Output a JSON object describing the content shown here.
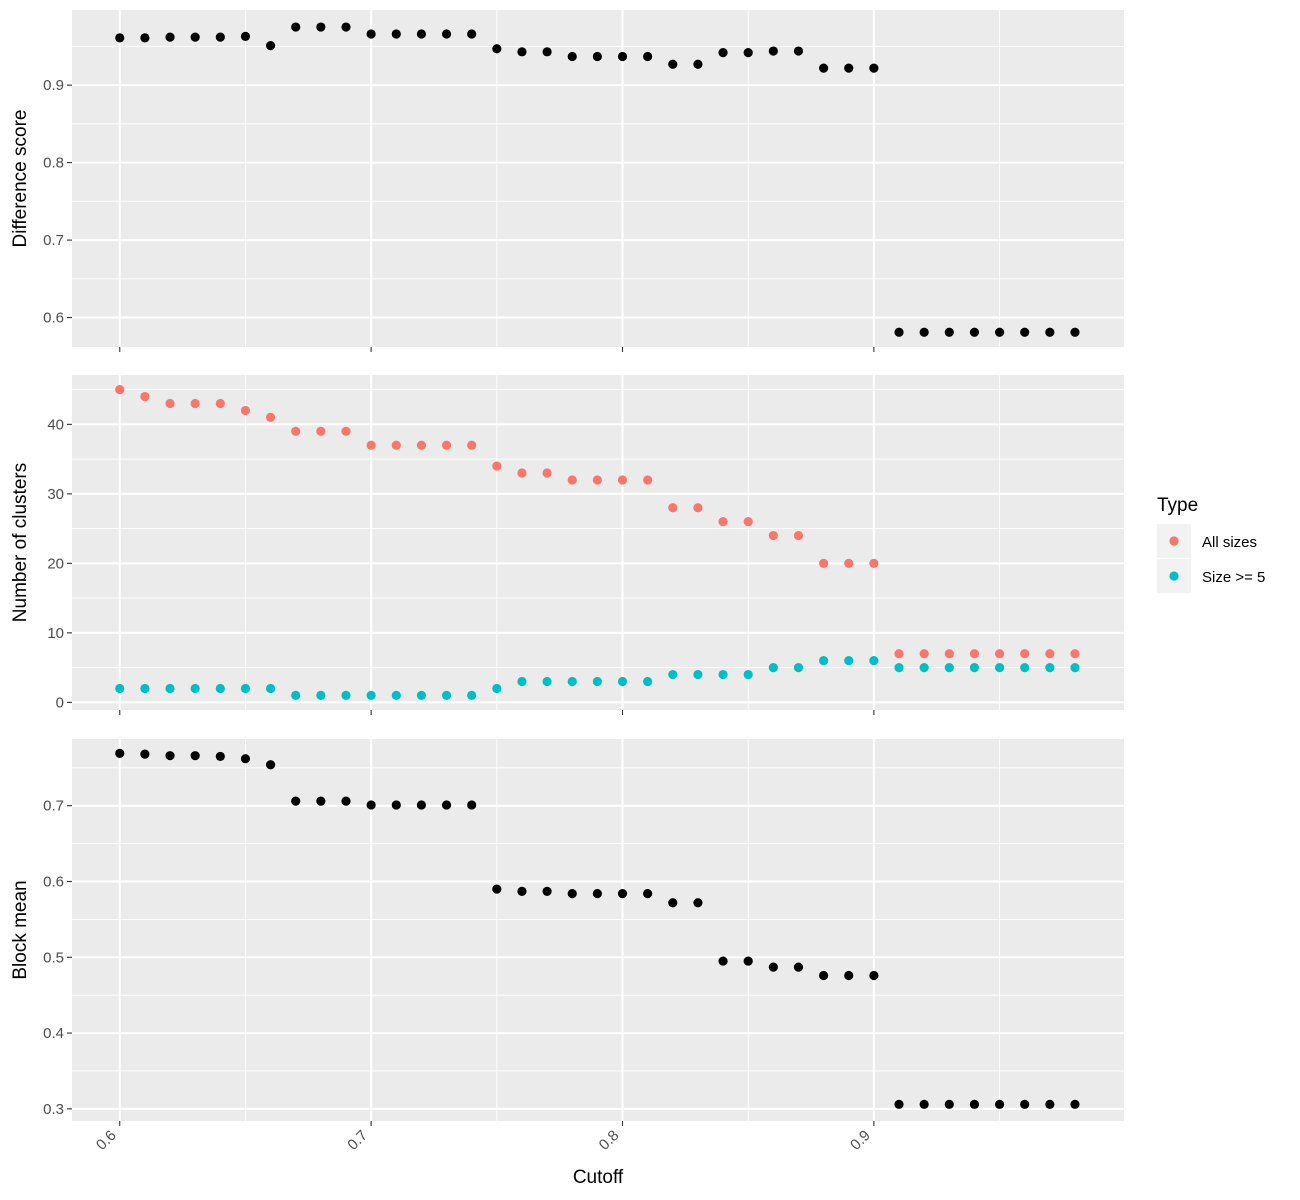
{
  "chart_data": [
    {
      "type": "scatter",
      "ylabel": "Difference score",
      "xlim": [
        0.581,
        0.9995
      ],
      "ylim": [
        0.562,
        0.997
      ],
      "yticks": [
        0.6,
        0.7,
        0.8,
        0.9
      ],
      "ytick_labels": [
        "0.6",
        "0.7",
        "0.8",
        "0.9"
      ],
      "grid": true,
      "series": [
        {
          "color": "#000000",
          "points": [
            [
              0.6,
              0.961
            ],
            [
              0.61,
              0.961
            ],
            [
              0.62,
              0.962
            ],
            [
              0.63,
              0.962
            ],
            [
              0.64,
              0.962
            ],
            [
              0.65,
              0.963
            ],
            [
              0.66,
              0.951
            ],
            [
              0.67,
              0.975
            ],
            [
              0.68,
              0.975
            ],
            [
              0.69,
              0.975
            ],
            [
              0.7,
              0.966
            ],
            [
              0.71,
              0.966
            ],
            [
              0.72,
              0.966
            ],
            [
              0.73,
              0.966
            ],
            [
              0.74,
              0.966
            ],
            [
              0.75,
              0.947
            ],
            [
              0.76,
              0.943
            ],
            [
              0.77,
              0.943
            ],
            [
              0.78,
              0.937
            ],
            [
              0.79,
              0.937
            ],
            [
              0.8,
              0.937
            ],
            [
              0.81,
              0.937
            ],
            [
              0.82,
              0.927
            ],
            [
              0.83,
              0.927
            ],
            [
              0.84,
              0.942
            ],
            [
              0.85,
              0.942
            ],
            [
              0.86,
              0.944
            ],
            [
              0.87,
              0.944
            ],
            [
              0.88,
              0.922
            ],
            [
              0.89,
              0.922
            ],
            [
              0.9,
              0.922
            ],
            [
              0.91,
              0.581
            ],
            [
              0.92,
              0.581
            ],
            [
              0.93,
              0.581
            ],
            [
              0.94,
              0.581
            ],
            [
              0.95,
              0.581
            ],
            [
              0.96,
              0.581
            ],
            [
              0.97,
              0.581
            ],
            [
              0.98,
              0.581
            ]
          ]
        }
      ]
    },
    {
      "type": "scatter",
      "ylabel": "Number of clusters",
      "xlim": [
        0.581,
        0.9995
      ],
      "ylim": [
        -1.1,
        47.1
      ],
      "yticks": [
        0,
        10,
        20,
        30,
        40
      ],
      "ytick_labels": [
        "0",
        "10",
        "20",
        "30",
        "40"
      ],
      "grid": true,
      "legend": {
        "title": "Type",
        "position": "right"
      },
      "series": [
        {
          "name": "All sizes",
          "color": "#F8766D",
          "points": [
            [
              0.6,
              45
            ],
            [
              0.61,
              44
            ],
            [
              0.62,
              43
            ],
            [
              0.63,
              43
            ],
            [
              0.64,
              43
            ],
            [
              0.65,
              42
            ],
            [
              0.66,
              41
            ],
            [
              0.67,
              39
            ],
            [
              0.68,
              39
            ],
            [
              0.69,
              39
            ],
            [
              0.7,
              37
            ],
            [
              0.71,
              37
            ],
            [
              0.72,
              37
            ],
            [
              0.73,
              37
            ],
            [
              0.74,
              37
            ],
            [
              0.75,
              34
            ],
            [
              0.76,
              33
            ],
            [
              0.77,
              33
            ],
            [
              0.78,
              32
            ],
            [
              0.79,
              32
            ],
            [
              0.8,
              32
            ],
            [
              0.81,
              32
            ],
            [
              0.82,
              28
            ],
            [
              0.83,
              28
            ],
            [
              0.84,
              26
            ],
            [
              0.85,
              26
            ],
            [
              0.86,
              24
            ],
            [
              0.87,
              24
            ],
            [
              0.88,
              20
            ],
            [
              0.89,
              20
            ],
            [
              0.9,
              20
            ],
            [
              0.91,
              7
            ],
            [
              0.92,
              7
            ],
            [
              0.93,
              7
            ],
            [
              0.94,
              7
            ],
            [
              0.95,
              7
            ],
            [
              0.96,
              7
            ],
            [
              0.97,
              7
            ],
            [
              0.98,
              7
            ]
          ]
        },
        {
          "name": "Size >= 5",
          "color": "#00BFC4",
          "points": [
            [
              0.6,
              2
            ],
            [
              0.61,
              2
            ],
            [
              0.62,
              2
            ],
            [
              0.63,
              2
            ],
            [
              0.64,
              2
            ],
            [
              0.65,
              2
            ],
            [
              0.66,
              2
            ],
            [
              0.67,
              1
            ],
            [
              0.68,
              1
            ],
            [
              0.69,
              1
            ],
            [
              0.7,
              1
            ],
            [
              0.71,
              1
            ],
            [
              0.72,
              1
            ],
            [
              0.73,
              1
            ],
            [
              0.74,
              1
            ],
            [
              0.75,
              2
            ],
            [
              0.76,
              3
            ],
            [
              0.77,
              3
            ],
            [
              0.78,
              3
            ],
            [
              0.79,
              3
            ],
            [
              0.8,
              3
            ],
            [
              0.81,
              3
            ],
            [
              0.82,
              4
            ],
            [
              0.83,
              4
            ],
            [
              0.84,
              4
            ],
            [
              0.85,
              4
            ],
            [
              0.86,
              5
            ],
            [
              0.87,
              5
            ],
            [
              0.88,
              6
            ],
            [
              0.89,
              6
            ],
            [
              0.9,
              6
            ],
            [
              0.91,
              5
            ],
            [
              0.92,
              5
            ],
            [
              0.93,
              5
            ],
            [
              0.94,
              5
            ],
            [
              0.95,
              5
            ],
            [
              0.96,
              5
            ],
            [
              0.97,
              5
            ],
            [
              0.98,
              5
            ]
          ]
        }
      ]
    },
    {
      "type": "scatter",
      "ylabel": "Block mean",
      "xlabel": "Cutoff",
      "xlim": [
        0.581,
        0.9995
      ],
      "ylim": [
        0.284,
        0.788
      ],
      "yticks": [
        0.3,
        0.4,
        0.5,
        0.6,
        0.7
      ],
      "ytick_labels": [
        "0.3",
        "0.4",
        "0.5",
        "0.6",
        "0.7"
      ],
      "xticks": [
        0.6,
        0.7,
        0.8,
        0.9
      ],
      "xtick_labels": [
        "0.6",
        "0.7",
        "0.8",
        "0.9"
      ],
      "grid": true,
      "series": [
        {
          "color": "#000000",
          "points": [
            [
              0.6,
              0.769
            ],
            [
              0.61,
              0.768
            ],
            [
              0.62,
              0.766
            ],
            [
              0.63,
              0.766
            ],
            [
              0.64,
              0.765
            ],
            [
              0.65,
              0.762
            ],
            [
              0.66,
              0.754
            ],
            [
              0.67,
              0.706
            ],
            [
              0.68,
              0.706
            ],
            [
              0.69,
              0.706
            ],
            [
              0.7,
              0.701
            ],
            [
              0.71,
              0.701
            ],
            [
              0.72,
              0.701
            ],
            [
              0.73,
              0.701
            ],
            [
              0.74,
              0.701
            ],
            [
              0.75,
              0.59
            ],
            [
              0.76,
              0.587
            ],
            [
              0.77,
              0.587
            ],
            [
              0.78,
              0.584
            ],
            [
              0.79,
              0.584
            ],
            [
              0.8,
              0.584
            ],
            [
              0.81,
              0.584
            ],
            [
              0.82,
              0.572
            ],
            [
              0.83,
              0.572
            ],
            [
              0.84,
              0.495
            ],
            [
              0.85,
              0.495
            ],
            [
              0.86,
              0.487
            ],
            [
              0.87,
              0.487
            ],
            [
              0.88,
              0.476
            ],
            [
              0.89,
              0.476
            ],
            [
              0.9,
              0.476
            ],
            [
              0.91,
              0.306
            ],
            [
              0.92,
              0.306
            ],
            [
              0.93,
              0.306
            ],
            [
              0.94,
              0.306
            ],
            [
              0.95,
              0.306
            ],
            [
              0.96,
              0.306
            ],
            [
              0.97,
              0.306
            ],
            [
              0.98,
              0.306
            ]
          ]
        }
      ]
    }
  ]
}
